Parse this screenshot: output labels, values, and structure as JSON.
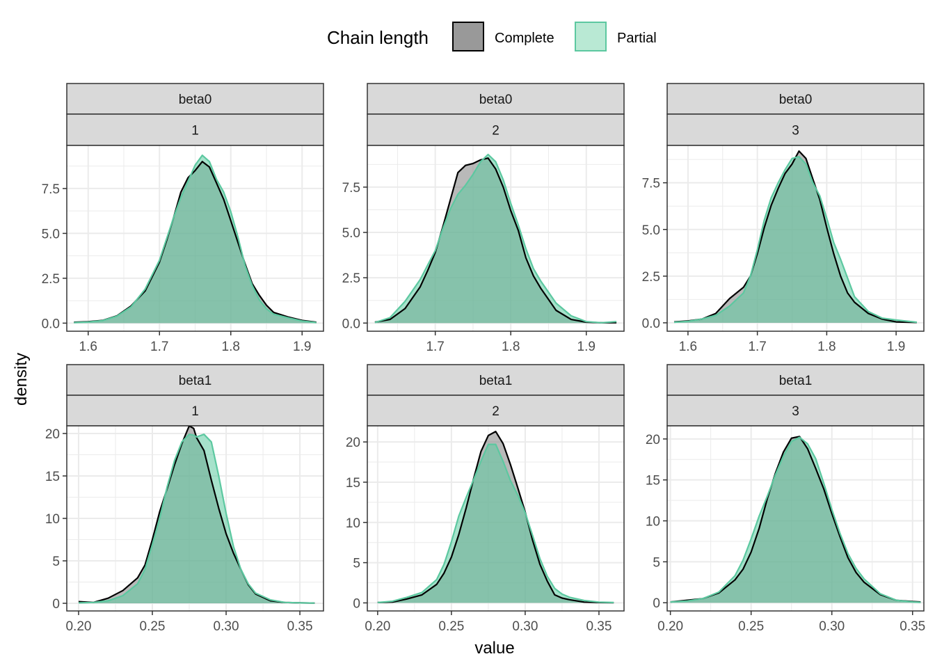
{
  "legend": {
    "title": "Chain length",
    "entries": [
      {
        "label": "Complete",
        "fill": "#999999",
        "stroke": "#000000"
      },
      {
        "label": "Partial",
        "fill": "#b9e9d4",
        "stroke": "#5cc8a0"
      }
    ]
  },
  "axes": {
    "x_title": "value",
    "y_title": "density"
  },
  "colors": {
    "complete_fill": "#7f7f7f",
    "complete_line": "#000000",
    "partial_fill": "#5ccaa0",
    "partial_line": "#5cc8a0",
    "strip_bg": "#d9d9d9",
    "grid": "#ebebeb"
  },
  "chart_data": [
    {
      "type": "area",
      "strip": [
        "beta0",
        "1"
      ],
      "xlim": [
        1.57,
        1.93
      ],
      "ylim": [
        -0.45,
        9.9
      ],
      "xticks": [
        1.6,
        1.7,
        1.8,
        1.9
      ],
      "xtick_labels": [
        "1.6",
        "1.7",
        "1.8",
        "1.9"
      ],
      "yticks": [
        0,
        2.5,
        5,
        7.5
      ],
      "ytick_labels": [
        "0.0",
        "2.5",
        "5.0",
        "7.5"
      ],
      "series": [
        {
          "name": "Complete",
          "x": [
            1.58,
            1.6,
            1.62,
            1.64,
            1.66,
            1.68,
            1.7,
            1.71,
            1.72,
            1.73,
            1.74,
            1.75,
            1.76,
            1.77,
            1.78,
            1.79,
            1.8,
            1.81,
            1.82,
            1.83,
            1.84,
            1.85,
            1.86,
            1.88,
            1.9,
            1.92
          ],
          "y": [
            0.05,
            0.08,
            0.15,
            0.4,
            0.95,
            1.8,
            3.4,
            4.6,
            5.9,
            7.3,
            8.1,
            8.5,
            9.0,
            8.7,
            7.8,
            6.9,
            5.7,
            4.5,
            3.3,
            2.2,
            1.55,
            1.0,
            0.6,
            0.35,
            0.15,
            0.05
          ]
        },
        {
          "name": "Partial",
          "x": [
            1.58,
            1.6,
            1.62,
            1.64,
            1.66,
            1.68,
            1.7,
            1.71,
            1.72,
            1.73,
            1.74,
            1.75,
            1.76,
            1.77,
            1.78,
            1.79,
            1.8,
            1.81,
            1.82,
            1.83,
            1.84,
            1.85,
            1.86,
            1.88,
            1.9,
            1.92
          ],
          "y": [
            0.03,
            0.06,
            0.14,
            0.38,
            0.9,
            1.9,
            3.5,
            4.7,
            5.9,
            7.0,
            7.9,
            8.8,
            9.35,
            9.0,
            8.0,
            7.3,
            6.2,
            4.8,
            3.2,
            2.1,
            1.3,
            0.8,
            0.5,
            0.3,
            0.12,
            0.03
          ]
        }
      ]
    },
    {
      "type": "area",
      "strip": [
        "beta0",
        "2"
      ],
      "xlim": [
        1.61,
        1.95
      ],
      "ylim": [
        -0.45,
        9.8
      ],
      "xticks": [
        1.7,
        1.8,
        1.9
      ],
      "xtick_labels": [
        "1.7",
        "1.8",
        "1.9"
      ],
      "yticks": [
        0,
        2.5,
        5,
        7.5
      ],
      "ytick_labels": [
        "0.0",
        "2.5",
        "5.0",
        "7.5"
      ],
      "series": [
        {
          "name": "Complete",
          "x": [
            1.62,
            1.64,
            1.66,
            1.68,
            1.69,
            1.7,
            1.71,
            1.72,
            1.73,
            1.74,
            1.75,
            1.76,
            1.77,
            1.78,
            1.79,
            1.8,
            1.81,
            1.82,
            1.83,
            1.84,
            1.85,
            1.86,
            1.88,
            1.9,
            1.92,
            1.94
          ],
          "y": [
            0.05,
            0.2,
            0.8,
            2.0,
            2.9,
            3.9,
            5.3,
            6.8,
            8.3,
            8.7,
            8.8,
            9.0,
            9.1,
            8.5,
            7.5,
            6.2,
            5.1,
            3.6,
            2.6,
            1.9,
            1.3,
            0.7,
            0.2,
            0.05,
            0.02,
            0.02
          ]
        },
        {
          "name": "Partial",
          "x": [
            1.62,
            1.64,
            1.66,
            1.68,
            1.69,
            1.7,
            1.71,
            1.72,
            1.73,
            1.74,
            1.75,
            1.76,
            1.77,
            1.78,
            1.79,
            1.8,
            1.81,
            1.82,
            1.83,
            1.84,
            1.85,
            1.86,
            1.88,
            1.9,
            1.92,
            1.94
          ],
          "y": [
            0.03,
            0.3,
            1.2,
            2.4,
            3.2,
            4.0,
            5.2,
            6.3,
            7.1,
            7.6,
            8.2,
            8.9,
            9.3,
            8.9,
            7.9,
            6.6,
            5.4,
            4.1,
            3.0,
            2.3,
            1.7,
            1.1,
            0.4,
            0.08,
            0.02,
            0.08
          ]
        }
      ]
    },
    {
      "type": "area",
      "strip": [
        "beta0",
        "3"
      ],
      "xlim": [
        1.57,
        1.94
      ],
      "ylim": [
        -0.45,
        9.5
      ],
      "xticks": [
        1.6,
        1.7,
        1.8,
        1.9
      ],
      "xtick_labels": [
        "1.6",
        "1.7",
        "1.8",
        "1.9"
      ],
      "yticks": [
        0,
        2.5,
        5,
        7.5
      ],
      "ytick_labels": [
        "0.0",
        "2.5",
        "5.0",
        "7.5"
      ],
      "series": [
        {
          "name": "Complete",
          "x": [
            1.58,
            1.6,
            1.62,
            1.64,
            1.66,
            1.68,
            1.69,
            1.7,
            1.71,
            1.72,
            1.73,
            1.74,
            1.75,
            1.76,
            1.77,
            1.78,
            1.79,
            1.8,
            1.81,
            1.82,
            1.83,
            1.84,
            1.86,
            1.88,
            1.9,
            1.93
          ],
          "y": [
            0.05,
            0.1,
            0.2,
            0.5,
            1.3,
            1.9,
            2.5,
            3.7,
            5.1,
            6.3,
            7.2,
            8.0,
            8.5,
            9.2,
            8.8,
            7.7,
            6.6,
            5.1,
            3.7,
            2.5,
            1.6,
            1.1,
            0.5,
            0.2,
            0.05,
            0.02
          ]
        },
        {
          "name": "Partial",
          "x": [
            1.58,
            1.6,
            1.62,
            1.64,
            1.66,
            1.68,
            1.69,
            1.7,
            1.71,
            1.72,
            1.73,
            1.74,
            1.75,
            1.76,
            1.77,
            1.78,
            1.79,
            1.8,
            1.81,
            1.82,
            1.83,
            1.84,
            1.86,
            1.88,
            1.9,
            1.93
          ],
          "y": [
            0.03,
            0.08,
            0.2,
            0.4,
            0.9,
            1.6,
            2.5,
            3.9,
            5.5,
            6.7,
            7.5,
            8.2,
            8.8,
            8.9,
            8.5,
            7.5,
            6.8,
            5.6,
            4.3,
            3.4,
            2.4,
            1.4,
            0.6,
            0.25,
            0.15,
            0.03
          ]
        }
      ]
    },
    {
      "type": "area",
      "strip": [
        "beta1",
        "1"
      ],
      "xlim": [
        0.192,
        0.366
      ],
      "ylim": [
        -0.9,
        20.9
      ],
      "xticks": [
        0.2,
        0.25,
        0.3,
        0.35
      ],
      "xtick_labels": [
        "0.20",
        "0.25",
        "0.30",
        "0.35"
      ],
      "yticks": [
        0,
        5,
        10,
        15,
        20
      ],
      "ytick_labels": [
        "0",
        "5",
        "10",
        "15",
        "20"
      ],
      "series": [
        {
          "name": "Complete",
          "x": [
            0.2,
            0.21,
            0.22,
            0.23,
            0.24,
            0.245,
            0.25,
            0.255,
            0.26,
            0.265,
            0.27,
            0.275,
            0.278,
            0.28,
            0.285,
            0.29,
            0.295,
            0.3,
            0.305,
            0.31,
            0.315,
            0.32,
            0.33,
            0.34,
            0.35,
            0.36
          ],
          "y": [
            0.2,
            0.1,
            0.6,
            1.5,
            3.0,
            4.5,
            7.5,
            10.8,
            13.5,
            16.3,
            18.8,
            20.9,
            20.6,
            19.5,
            18.0,
            14.5,
            11.2,
            8.2,
            5.9,
            4.0,
            2.2,
            1.1,
            0.3,
            0.1,
            0.05,
            0.03
          ]
        },
        {
          "name": "Partial",
          "x": [
            0.2,
            0.21,
            0.22,
            0.23,
            0.24,
            0.245,
            0.25,
            0.255,
            0.26,
            0.265,
            0.27,
            0.275,
            0.278,
            0.28,
            0.285,
            0.29,
            0.295,
            0.3,
            0.305,
            0.31,
            0.315,
            0.32,
            0.33,
            0.34,
            0.35,
            0.36
          ],
          "y": [
            0.05,
            0.1,
            0.3,
            0.9,
            2.3,
            4.0,
            6.9,
            10.0,
            13.7,
            16.8,
            19.0,
            19.9,
            19.8,
            19.6,
            19.9,
            19.0,
            15.0,
            10.6,
            6.7,
            4.0,
            2.3,
            1.2,
            0.4,
            0.1,
            0.05,
            0.03
          ]
        }
      ]
    },
    {
      "type": "area",
      "strip": [
        "beta1",
        "2"
      ],
      "xlim": [
        0.193,
        0.367
      ],
      "ylim": [
        -1.0,
        22.0
      ],
      "xticks": [
        0.2,
        0.25,
        0.3,
        0.35
      ],
      "xtick_labels": [
        "0.20",
        "0.25",
        "0.30",
        "0.35"
      ],
      "yticks": [
        0,
        5,
        10,
        15,
        20
      ],
      "ytick_labels": [
        "0",
        "5",
        "10",
        "15",
        "20"
      ],
      "series": [
        {
          "name": "Complete",
          "x": [
            0.2,
            0.21,
            0.22,
            0.23,
            0.24,
            0.245,
            0.25,
            0.255,
            0.26,
            0.265,
            0.27,
            0.275,
            0.28,
            0.285,
            0.29,
            0.295,
            0.3,
            0.305,
            0.31,
            0.315,
            0.32,
            0.325,
            0.33,
            0.34,
            0.35,
            0.36
          ],
          "y": [
            0.05,
            0.1,
            0.5,
            1.0,
            2.3,
            3.7,
            5.7,
            8.5,
            11.8,
            15.4,
            18.8,
            20.8,
            21.3,
            19.8,
            17.2,
            14.3,
            11.3,
            7.8,
            4.8,
            2.7,
            1.0,
            0.6,
            0.4,
            0.1,
            0.05,
            0.02
          ]
        },
        {
          "name": "Partial",
          "x": [
            0.2,
            0.21,
            0.22,
            0.23,
            0.24,
            0.245,
            0.25,
            0.255,
            0.26,
            0.265,
            0.27,
            0.275,
            0.28,
            0.285,
            0.29,
            0.295,
            0.3,
            0.305,
            0.31,
            0.315,
            0.32,
            0.325,
            0.33,
            0.34,
            0.35,
            0.36
          ],
          "y": [
            0.05,
            0.2,
            0.7,
            1.3,
            2.9,
            4.8,
            7.6,
            10.8,
            13.1,
            15.3,
            17.6,
            19.7,
            19.7,
            17.6,
            15.2,
            13.4,
            11.2,
            8.4,
            5.5,
            3.3,
            1.8,
            1.1,
            0.7,
            0.3,
            0.1,
            0.05
          ]
        }
      ]
    },
    {
      "type": "area",
      "strip": [
        "beta1",
        "3"
      ],
      "xlim": [
        0.198,
        0.357
      ],
      "ylim": [
        -1.0,
        21.6
      ],
      "xticks": [
        0.2,
        0.25,
        0.3,
        0.35
      ],
      "xtick_labels": [
        "0.20",
        "0.25",
        "0.30",
        "0.35"
      ],
      "yticks": [
        0,
        5,
        10,
        15,
        20
      ],
      "ytick_labels": [
        "0",
        "5",
        "10",
        "15",
        "20"
      ],
      "series": [
        {
          "name": "Complete",
          "x": [
            0.2,
            0.21,
            0.22,
            0.23,
            0.24,
            0.245,
            0.25,
            0.255,
            0.26,
            0.265,
            0.27,
            0.275,
            0.28,
            0.285,
            0.29,
            0.295,
            0.3,
            0.305,
            0.31,
            0.315,
            0.32,
            0.33,
            0.34,
            0.35,
            0.355
          ],
          "y": [
            0.1,
            0.3,
            0.5,
            1.2,
            2.8,
            4.1,
            6.2,
            9.1,
            12.7,
            15.8,
            18.4,
            20.1,
            20.3,
            18.8,
            16.4,
            13.9,
            10.9,
            8.1,
            5.5,
            3.7,
            2.5,
            1.0,
            0.3,
            0.15,
            0.1
          ]
        },
        {
          "name": "Partial",
          "x": [
            0.2,
            0.21,
            0.22,
            0.23,
            0.24,
            0.245,
            0.25,
            0.255,
            0.26,
            0.265,
            0.27,
            0.275,
            0.28,
            0.285,
            0.29,
            0.295,
            0.3,
            0.305,
            0.31,
            0.315,
            0.32,
            0.33,
            0.34,
            0.35,
            0.355
          ],
          "y": [
            0.1,
            0.2,
            0.5,
            1.3,
            3.3,
            5.2,
            7.8,
            10.6,
            13.0,
            15.6,
            17.9,
            19.7,
            20.2,
            19.4,
            17.6,
            14.6,
            11.4,
            8.5,
            6.0,
            4.2,
            2.9,
            1.1,
            0.3,
            0.1,
            0.05
          ]
        }
      ]
    }
  ]
}
